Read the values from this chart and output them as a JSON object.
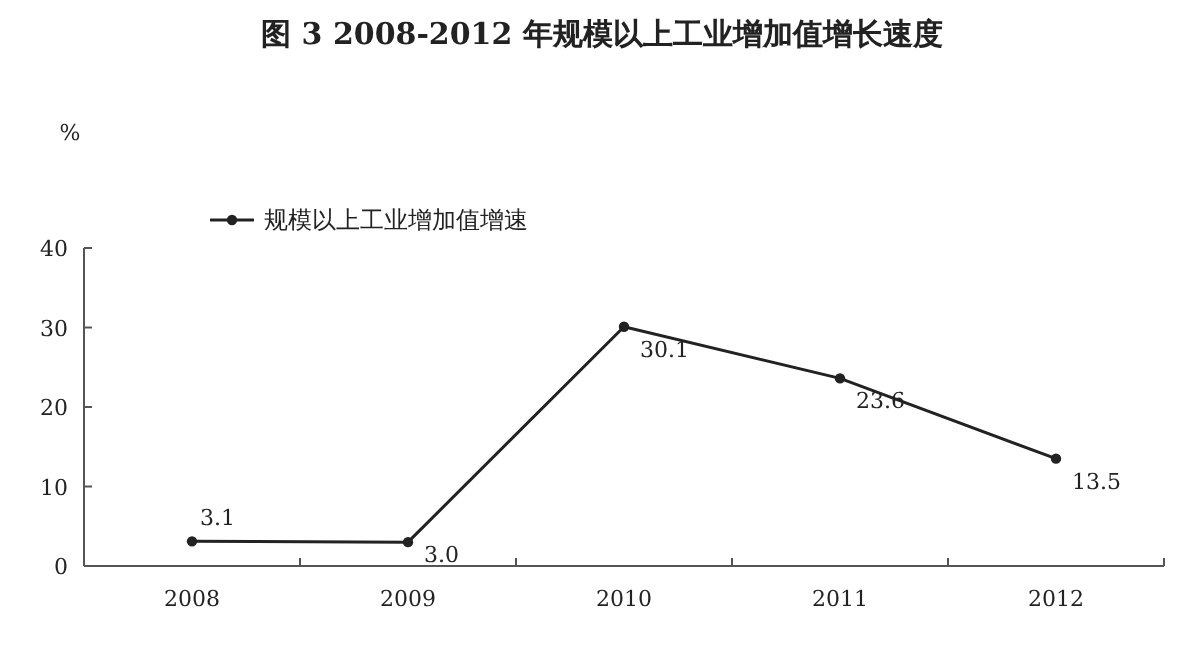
{
  "chart_data": {
    "type": "line",
    "title": "图 3 2008-2012 年规模以上工业增加值增长速度",
    "ylabel": "%",
    "categories": [
      "2008",
      "2009",
      "2010",
      "2011",
      "2012"
    ],
    "series": [
      {
        "name": "规模以上工业增加值增速",
        "color": "#222222",
        "values": [
          3.1,
          3.0,
          30.1,
          23.6,
          13.5
        ],
        "value_labels": [
          "3.1",
          "3.0",
          "30.1",
          "23.6",
          "13.5"
        ]
      }
    ],
    "ylim": [
      0,
      40
    ],
    "yticks": [
      0,
      10,
      20,
      30,
      40
    ],
    "marker": "circle",
    "legend": "top left",
    "grid": false
  }
}
